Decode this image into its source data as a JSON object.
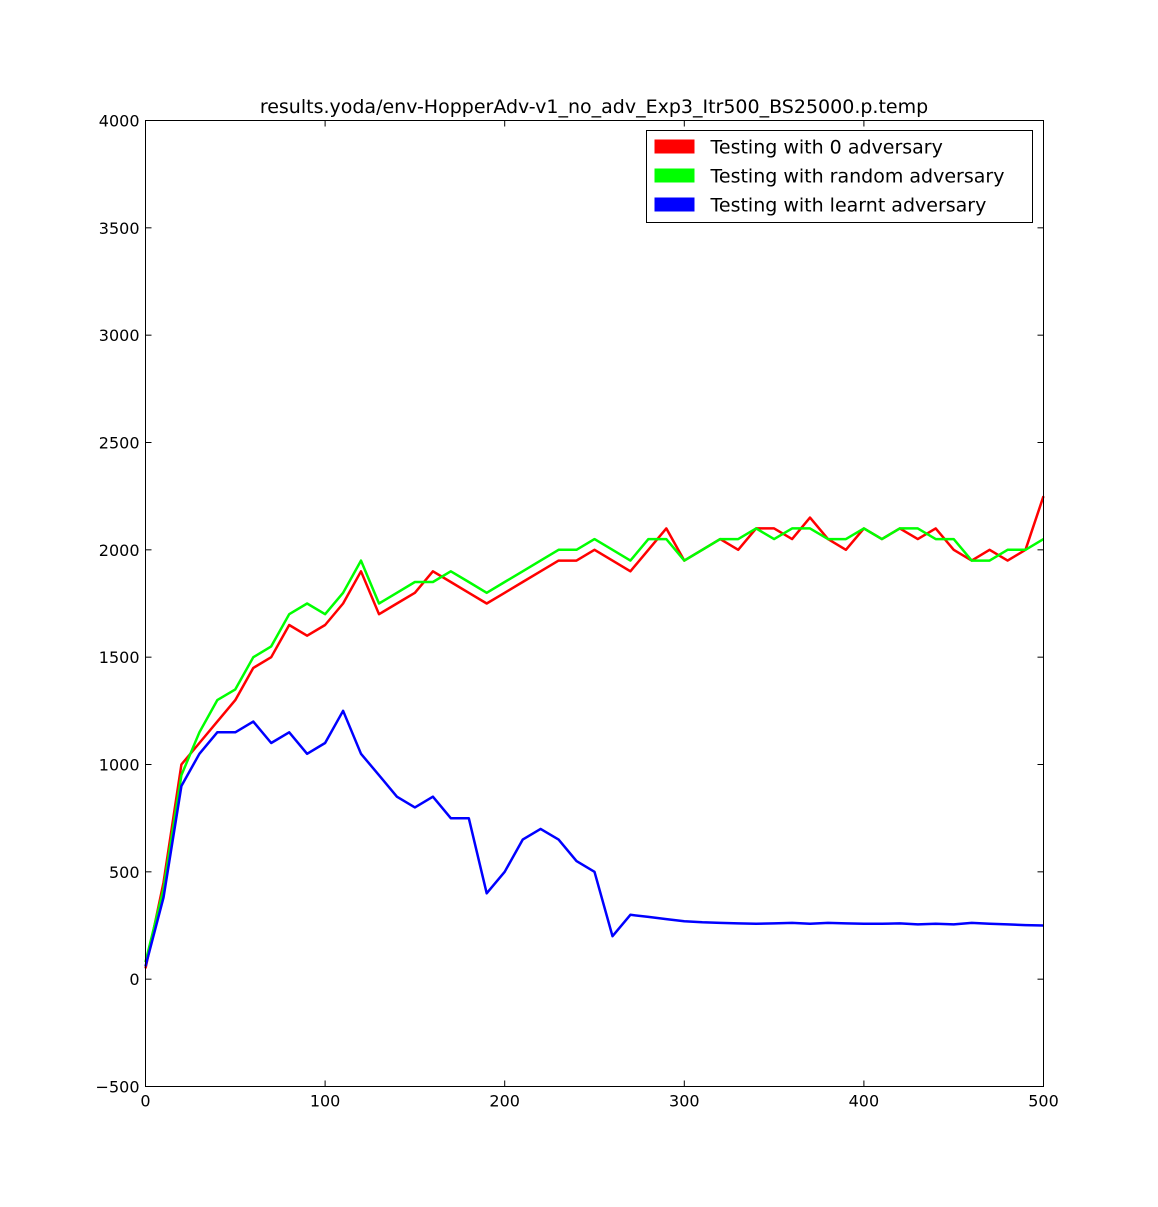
{
  "chart_data": {
    "type": "line",
    "title": "results.yoda/env-HopperAdv-v1_no_adv_Exp3_Itr500_BS25000.p.temp",
    "xlabel": "",
    "ylabel": "",
    "xlim": [
      0,
      500
    ],
    "ylim": [
      -500,
      4000
    ],
    "xticks": [
      0,
      100,
      200,
      300,
      400,
      500
    ],
    "yticks": [
      -500,
      0,
      500,
      1000,
      1500,
      2000,
      2500,
      3000,
      3500,
      4000
    ],
    "xtick_labels": [
      "0",
      "100",
      "200",
      "300",
      "400",
      "500"
    ],
    "ytick_labels": [
      "−500",
      "0",
      "500",
      "1000",
      "1500",
      "2000",
      "2500",
      "3000",
      "3500",
      "4000"
    ],
    "grid": false,
    "legend_position": "top-right",
    "x": [
      0,
      10,
      20,
      30,
      40,
      50,
      60,
      70,
      80,
      90,
      100,
      110,
      120,
      130,
      140,
      150,
      160,
      170,
      180,
      190,
      200,
      210,
      220,
      230,
      240,
      250,
      260,
      270,
      280,
      290,
      300,
      310,
      320,
      330,
      340,
      350,
      360,
      370,
      380,
      390,
      400,
      410,
      420,
      430,
      440,
      450,
      460,
      470,
      480,
      490,
      500
    ],
    "series": [
      {
        "name": "Testing with 0 adversary",
        "color": "#ff0000",
        "values": [
          50,
          450,
          1000,
          1100,
          1200,
          1300,
          1450,
          1500,
          1650,
          1600,
          1650,
          1750,
          1900,
          1700,
          1750,
          1800,
          1900,
          1850,
          1800,
          1750,
          1800,
          1850,
          1900,
          1950,
          1950,
          2000,
          1950,
          1900,
          2000,
          2100,
          1950,
          2000,
          2050,
          2000,
          2100,
          2100,
          2050,
          2150,
          2050,
          2000,
          2100,
          2050,
          2100,
          2050,
          2100,
          2000,
          1950,
          2000,
          1950,
          2000,
          2250
        ]
      },
      {
        "name": "Testing with random adversary",
        "color": "#00ff00",
        "values": [
          80,
          420,
          950,
          1150,
          1300,
          1350,
          1500,
          1550,
          1700,
          1750,
          1700,
          1800,
          1950,
          1750,
          1800,
          1850,
          1850,
          1900,
          1850,
          1800,
          1850,
          1900,
          1950,
          2000,
          2000,
          2050,
          2000,
          1950,
          2050,
          2050,
          1950,
          2000,
          2050,
          2050,
          2100,
          2050,
          2100,
          2100,
          2050,
          2050,
          2100,
          2050,
          2100,
          2100,
          2050,
          2050,
          1950,
          1950,
          2000,
          2000,
          2050
        ]
      },
      {
        "name": "Testing with learnt adversary",
        "color": "#0000ff",
        "values": [
          60,
          380,
          900,
          1050,
          1150,
          1150,
          1200,
          1100,
          1150,
          1050,
          1100,
          1250,
          1050,
          950,
          850,
          800,
          850,
          750,
          750,
          400,
          500,
          650,
          700,
          650,
          550,
          500,
          200,
          300,
          290,
          280,
          270,
          265,
          262,
          260,
          258,
          260,
          262,
          258,
          262,
          260,
          258,
          258,
          260,
          255,
          258,
          255,
          262,
          258,
          255,
          252,
          250
        ]
      }
    ]
  }
}
